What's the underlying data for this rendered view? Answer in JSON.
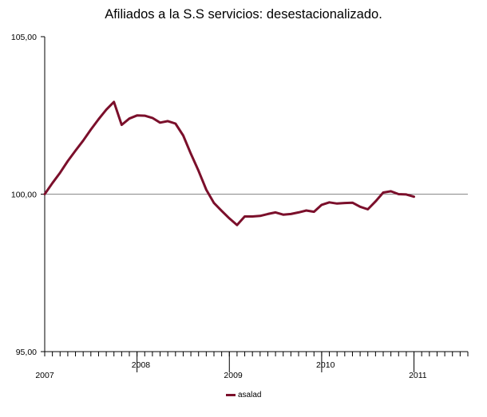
{
  "chart_data": {
    "type": "line",
    "title": "Afiliados a la S.S servicios: desestacionalizado.",
    "xlabel": "",
    "ylabel": "",
    "ylim": [
      95,
      105
    ],
    "yticks": [
      "95,00",
      "100,00",
      "105,00"
    ],
    "year_labels": [
      "2007",
      "2008",
      "2009",
      "2010",
      "2011"
    ],
    "x_start": "2007-01",
    "series": [
      {
        "name": "asalad",
        "color": "#7b0f2b",
        "values": [
          100.0,
          100.35,
          100.68,
          101.05,
          101.38,
          101.7,
          102.05,
          102.38,
          102.68,
          102.93,
          102.2,
          102.4,
          102.5,
          102.49,
          102.42,
          102.27,
          102.32,
          102.24,
          101.86,
          101.28,
          100.74,
          100.14,
          99.72,
          99.47,
          99.23,
          99.02,
          99.29,
          99.29,
          99.31,
          99.37,
          99.42,
          99.35,
          99.37,
          99.42,
          99.48,
          99.44,
          99.66,
          99.74,
          99.7,
          99.72,
          99.73,
          99.6,
          99.52,
          99.77,
          100.05,
          100.09,
          100.0,
          99.99,
          99.92
        ]
      }
    ],
    "grid": false,
    "legend_position": "bottom-center"
  }
}
